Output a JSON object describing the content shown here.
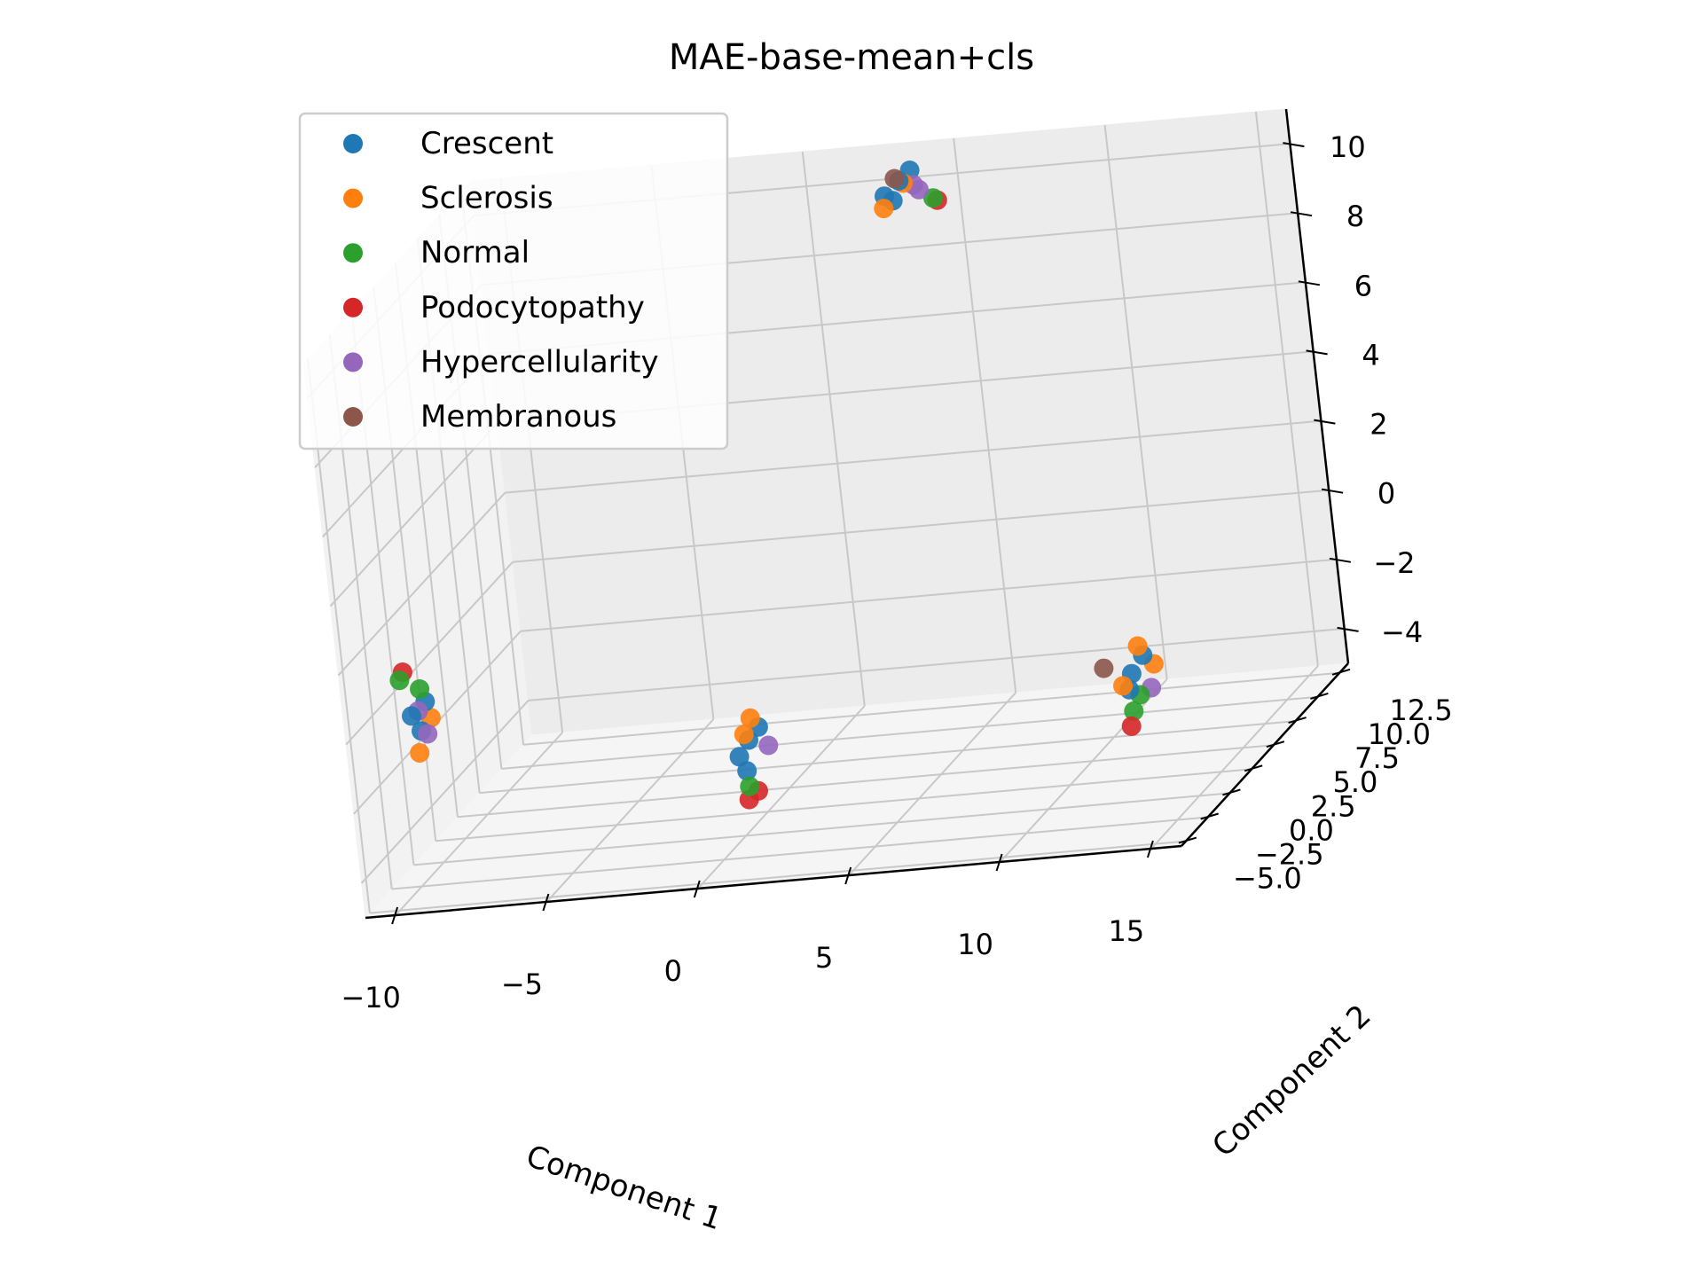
{
  "chart_data": {
    "type": "scatter",
    "projection": "3d",
    "title": "MAE-base-mean+cls",
    "xlabel": "Component 1",
    "ylabel": "Component 2",
    "zlabel": "",
    "grid": true,
    "legend_position": "top-left",
    "xlim": [
      -11,
      16
    ],
    "ylim": [
      -5.5,
      13.5
    ],
    "zlim": [
      -5,
      11
    ],
    "xticks": [
      -10,
      -5,
      0,
      5,
      10,
      15
    ],
    "xtick_labels": [
      "−10",
      "−5",
      "0",
      "5",
      "10",
      "15"
    ],
    "yticks": [
      -5,
      -2.5,
      0,
      2.5,
      5,
      7.5,
      10,
      12.5
    ],
    "ytick_labels": [
      "−5.0",
      "−2.5",
      "0.0",
      "2.5",
      "5.0",
      "7.5",
      "10.0",
      "12.5"
    ],
    "zticks": [
      -4,
      -2,
      0,
      2,
      4,
      6,
      8,
      10
    ],
    "ztick_labels": [
      "−4",
      "−2",
      "0",
      "2",
      "4",
      "6",
      "8",
      "10"
    ],
    "series": [
      {
        "name": "Crescent",
        "color": "#1f77b4",
        "points": [
          [
            -9,
            -3.9,
            -0.2
          ],
          [
            -9.2,
            -4.1,
            0.3
          ],
          [
            -8.8,
            -3.8,
            0.6
          ],
          [
            0.4,
            0.1,
            -2.3
          ],
          [
            0.1,
            -0.1,
            -2.7
          ],
          [
            0.7,
            0.3,
            -2.0
          ],
          [
            0.2,
            0.2,
            -3.2
          ],
          [
            12.0,
            3.8,
            -2.3
          ],
          [
            12.3,
            4.2,
            -1.9
          ],
          [
            11.8,
            4.0,
            -2.8
          ],
          [
            3.4,
            12.4,
            10.2
          ],
          [
            3.2,
            12.2,
            9.7
          ],
          [
            3.7,
            12.7,
            10.4
          ],
          [
            3.0,
            12.0,
            9.9
          ]
        ]
      },
      {
        "name": "Sclerosis",
        "color": "#ff7f0e",
        "points": [
          [
            -9.1,
            -4.0,
            -0.8
          ],
          [
            -8.7,
            -3.7,
            0.1
          ],
          [
            0.5,
            0.2,
            -1.7
          ],
          [
            0.3,
            0.0,
            -2.1
          ],
          [
            12.2,
            4.1,
            -1.6
          ],
          [
            11.7,
            3.7,
            -2.6
          ],
          [
            12.6,
            4.3,
            -2.2
          ],
          [
            3.0,
            11.8,
            9.6
          ],
          [
            3.5,
            12.5,
            10.1
          ]
        ]
      },
      {
        "name": "Normal",
        "color": "#2ca02c",
        "points": [
          [
            -9.4,
            -4.3,
            1.4
          ],
          [
            -8.9,
            -3.9,
            1.0
          ],
          [
            0.3,
            0.0,
            -3.6
          ],
          [
            11.9,
            3.9,
            -3.4
          ],
          [
            12.1,
            4.1,
            -3.0
          ],
          [
            4.3,
            12.9,
            9.5
          ]
        ]
      },
      {
        "name": "Podocytopathy",
        "color": "#d62728",
        "points": [
          [
            -9.3,
            -4.2,
            1.6
          ],
          [
            0.2,
            0.1,
            -4.0
          ],
          [
            0.5,
            0.2,
            -3.8
          ],
          [
            11.8,
            3.8,
            -3.8
          ],
          [
            4.4,
            13.0,
            9.4
          ]
        ]
      },
      {
        "name": "Hypercellularity",
        "color": "#9467bd",
        "points": [
          [
            -9.0,
            -4.0,
            0.4
          ],
          [
            -8.8,
            -3.9,
            -0.3
          ],
          [
            0.9,
            0.5,
            -2.6
          ],
          [
            12.4,
            4.4,
            -2.9
          ],
          [
            3.8,
            12.6,
            10.0
          ],
          [
            3.9,
            12.8,
            9.8
          ]
        ]
      },
      {
        "name": "Membranous",
        "color": "#8c564b",
        "points": [
          [
            11.2,
            3.5,
            -2.0
          ],
          [
            3.3,
            12.3,
            10.3
          ]
        ]
      }
    ]
  }
}
